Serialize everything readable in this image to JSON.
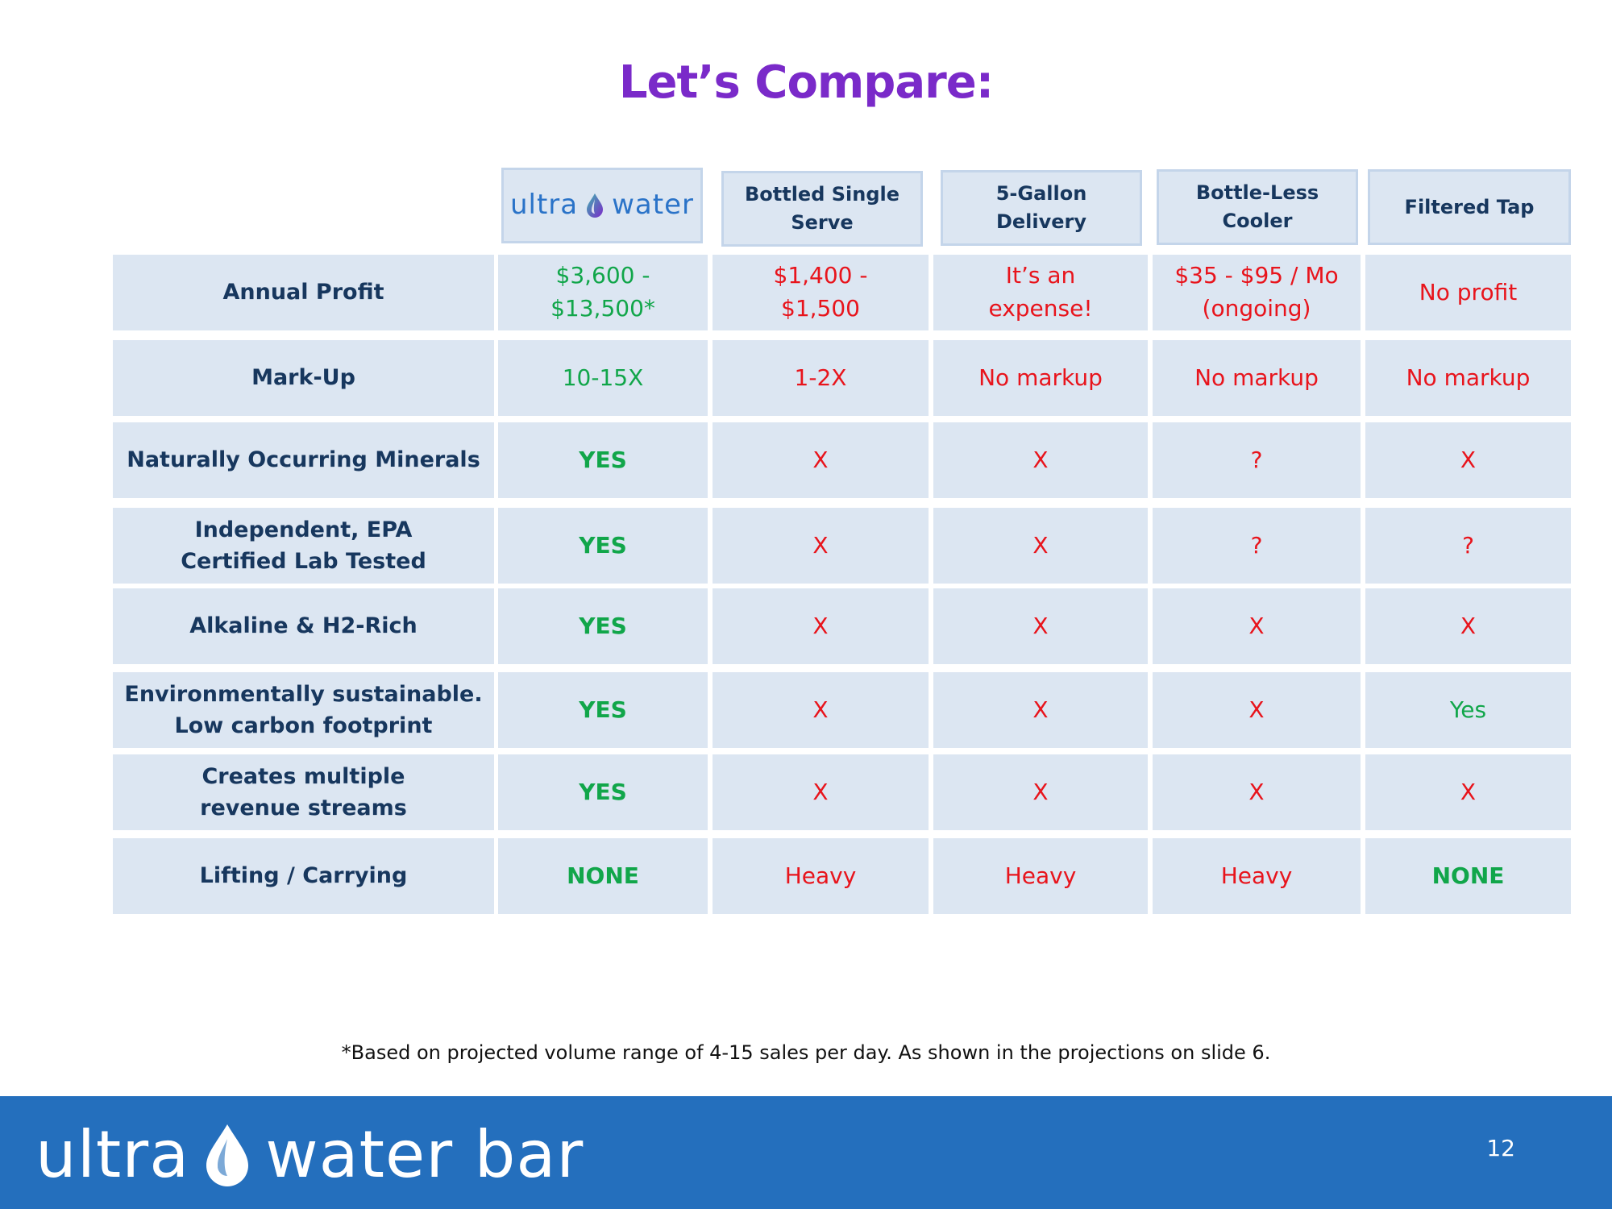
{
  "title": "Let’s Compare:",
  "header": {
    "logo_left": "ultra",
    "logo_right": "water",
    "columns": [
      {
        "line1": "Bottled Single",
        "line2": "Serve"
      },
      {
        "line1": "5-Gallon",
        "line2": "Delivery"
      },
      {
        "line1": "Bottle-Less",
        "line2": "Cooler"
      },
      {
        "line1": "Filtered Tap",
        "line2": ""
      }
    ]
  },
  "rows": [
    {
      "label1": "Annual Profit",
      "label2": "",
      "cells": [
        {
          "l1": "$3,600 -",
          "l2": "$13,500*",
          "color": "green"
        },
        {
          "l1": "$1,400 -",
          "l2": "$1,500",
          "color": "red"
        },
        {
          "l1": "It’s an",
          "l2": "expense!",
          "color": "red"
        },
        {
          "l1": "$35 - $95 / Mo",
          "l2": "(ongoing)",
          "color": "red"
        },
        {
          "l1": "No profit",
          "l2": "",
          "color": "red"
        }
      ]
    },
    {
      "label1": "Mark-Up",
      "label2": "",
      "cells": [
        {
          "l1": "10-15X",
          "l2": "",
          "color": "green"
        },
        {
          "l1": "1-2X",
          "l2": "",
          "color": "red"
        },
        {
          "l1": "No markup",
          "l2": "",
          "color": "red"
        },
        {
          "l1": "No markup",
          "l2": "",
          "color": "red"
        },
        {
          "l1": "No markup",
          "l2": "",
          "color": "red"
        }
      ]
    },
    {
      "label1": "Naturally Occurring Minerals",
      "label2": "",
      "cells": [
        {
          "l1": "YES",
          "l2": "",
          "color": "green",
          "bold": true
        },
        {
          "l1": "X",
          "l2": "",
          "color": "red"
        },
        {
          "l1": "X",
          "l2": "",
          "color": "red"
        },
        {
          "l1": "?",
          "l2": "",
          "color": "red"
        },
        {
          "l1": "X",
          "l2": "",
          "color": "red"
        }
      ]
    },
    {
      "label1": "Independent, EPA",
      "label2": "Certified Lab Tested",
      "cells": [
        {
          "l1": "YES",
          "l2": "",
          "color": "green",
          "bold": true
        },
        {
          "l1": "X",
          "l2": "",
          "color": "red"
        },
        {
          "l1": "X",
          "l2": "",
          "color": "red"
        },
        {
          "l1": "?",
          "l2": "",
          "color": "red"
        },
        {
          "l1": "?",
          "l2": "",
          "color": "red"
        }
      ]
    },
    {
      "label1": "Alkaline & H2-Rich",
      "label2": "",
      "cells": [
        {
          "l1": "YES",
          "l2": "",
          "color": "green",
          "bold": true
        },
        {
          "l1": "X",
          "l2": "",
          "color": "red"
        },
        {
          "l1": "X",
          "l2": "",
          "color": "red"
        },
        {
          "l1": "X",
          "l2": "",
          "color": "red"
        },
        {
          "l1": "X",
          "l2": "",
          "color": "red"
        }
      ]
    },
    {
      "label1": "Environmentally sustainable.",
      "label2": "Low carbon footprint",
      "cells": [
        {
          "l1": "YES",
          "l2": "",
          "color": "green",
          "bold": true
        },
        {
          "l1": "X",
          "l2": "",
          "color": "red"
        },
        {
          "l1": "X",
          "l2": "",
          "color": "red"
        },
        {
          "l1": "X",
          "l2": "",
          "color": "red"
        },
        {
          "l1": "Yes",
          "l2": "",
          "color": "green"
        }
      ]
    },
    {
      "label1": "Creates multiple",
      "label2": "revenue streams",
      "cells": [
        {
          "l1": "YES",
          "l2": "",
          "color": "green",
          "bold": true
        },
        {
          "l1": "X",
          "l2": "",
          "color": "red"
        },
        {
          "l1": "X",
          "l2": "",
          "color": "red"
        },
        {
          "l1": "X",
          "l2": "",
          "color": "red"
        },
        {
          "l1": "X",
          "l2": "",
          "color": "red"
        }
      ]
    },
    {
      "label1": "Lifting / Carrying",
      "label2": "",
      "cells": [
        {
          "l1": "NONE",
          "l2": "",
          "color": "green",
          "bold": true
        },
        {
          "l1": "Heavy",
          "l2": "",
          "color": "red"
        },
        {
          "l1": "Heavy",
          "l2": "",
          "color": "red"
        },
        {
          "l1": "Heavy",
          "l2": "",
          "color": "red"
        },
        {
          "l1": "NONE",
          "l2": "",
          "color": "green",
          "bold": true
        }
      ]
    }
  ],
  "footnote": "*Based on projected volume range of 4-15 sales per day. As shown in the projections on slide 6.",
  "footer": {
    "brand": "ultra",
    "brand_tail": "water bar",
    "page_number": "12"
  },
  "colors": {
    "title": "#7a2ac9",
    "cell_bg": "#dce6f2",
    "label_text": "#17375e",
    "positive": "#11a64a",
    "negative": "#e8141c",
    "footer_bg": "#246fbd"
  }
}
